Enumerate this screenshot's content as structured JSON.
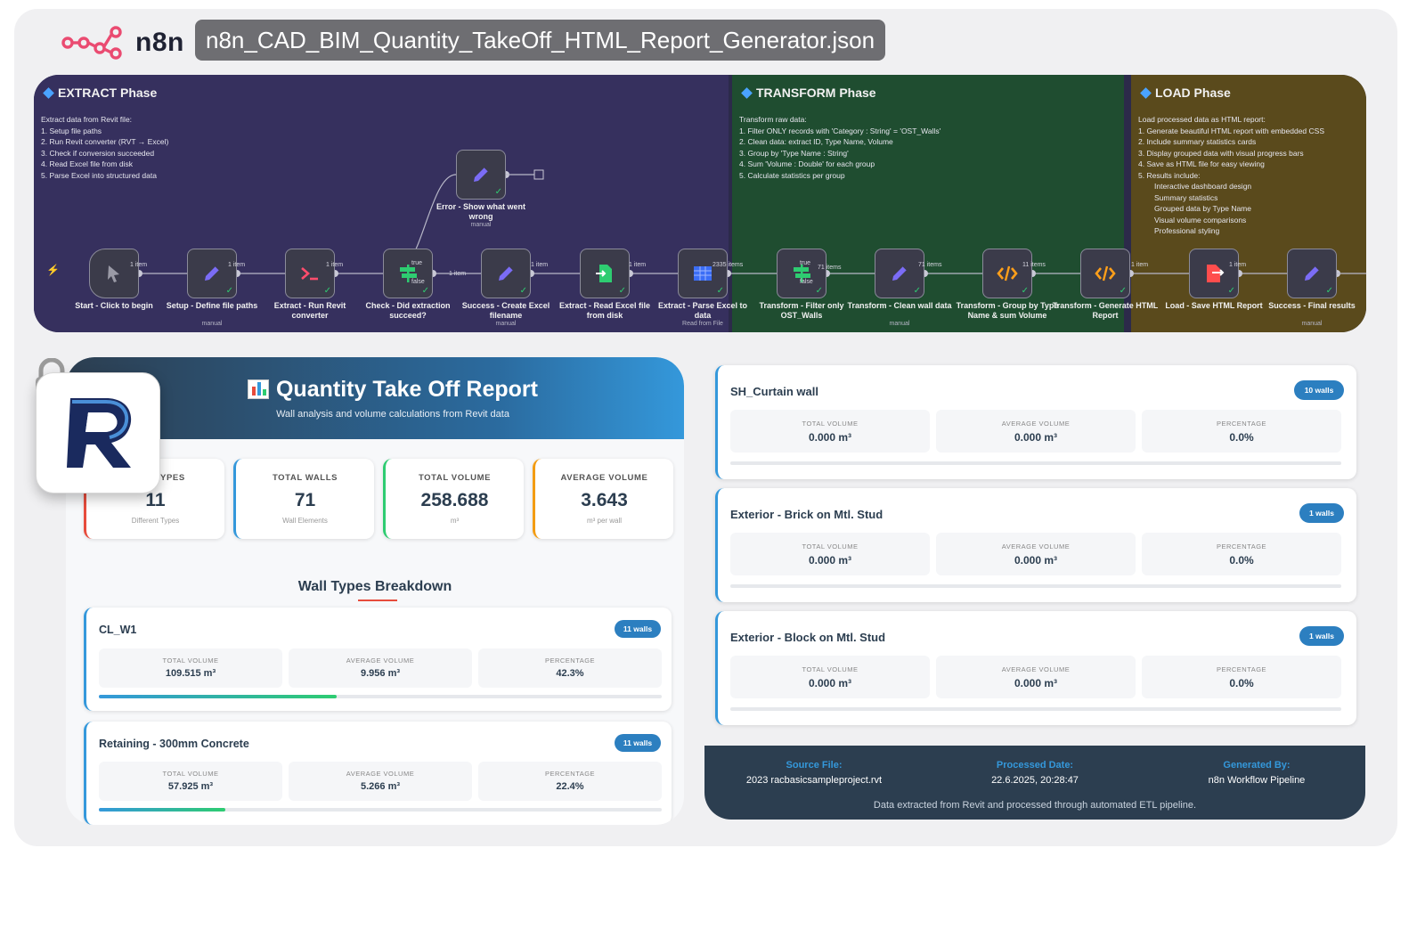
{
  "header": {
    "brand": "n8n",
    "file_title": "n8n_CAD_BIM_Quantity_TakeOff_HTML_Report_Generator.json"
  },
  "workflow": {
    "phases": [
      {
        "title": "EXTRACT Phase",
        "note_lines": [
          "Extract data from Revit file:",
          "1. Setup file paths",
          "2. Run Revit converter (RVT → Excel)",
          "3. Check if conversion succeeded",
          "4. Read Excel file from disk",
          "5. Parse Excel into structured data"
        ]
      },
      {
        "title": "TRANSFORM Phase",
        "note_lines": [
          "Transform raw data:",
          "1. Filter ONLY records with 'Category : String' = 'OST_Walls'",
          "2. Clean data: extract ID, Type Name, Volume",
          "3. Group by 'Type Name : String'",
          "4. Sum 'Volume : Double' for each group",
          "5. Calculate statistics per group"
        ]
      },
      {
        "title": "LOAD Phase",
        "note_lines": [
          "Load processed data as HTML report:",
          "1. Generate beautiful HTML report with embedded CSS",
          "2. Include summary statistics cards",
          "3. Display grouped data with visual progress bars",
          "4. Save as HTML file for easy viewing",
          "5. Results include:"
        ],
        "note_bullets": [
          "Interactive dashboard design",
          "Summary statistics",
          "Grouped data by Type Name",
          "Visual volume comparisons",
          "Professional styling"
        ]
      }
    ],
    "nodes": [
      {
        "label": "Start - Click to begin",
        "sub": "",
        "icon": "cursor-icon",
        "color": "#9a9aa6"
      },
      {
        "label": "Setup - Define file paths",
        "sub": "manual",
        "icon": "pencil-icon",
        "color": "#7b6cf6"
      },
      {
        "label": "Extract - Run Revit converter",
        "sub": "",
        "icon": "terminal-icon",
        "color": "#ff4d6d"
      },
      {
        "label": "Check - Did extraction succeed?",
        "sub": "",
        "icon": "if-signpost-icon",
        "color": "#2ecc71"
      },
      {
        "label": "Success - Create Excel filename",
        "sub": "manual",
        "icon": "pencil-icon",
        "color": "#7b6cf6"
      },
      {
        "label": "Extract - Read Excel file from disk",
        "sub": "",
        "icon": "file-read-icon",
        "color": "#2ecc71"
      },
      {
        "label": "Extract - Parse Excel to data",
        "sub": "Read from File",
        "icon": "spreadsheet-icon",
        "color": "#3b6df6"
      },
      {
        "label": "Transform - Filter only OST_Walls",
        "sub": "",
        "icon": "filter-signpost-icon",
        "color": "#2ecc71"
      },
      {
        "label": "Transform - Clean wall data",
        "sub": "manual",
        "icon": "pencil-icon",
        "color": "#7b6cf6"
      },
      {
        "label": "Transform - Group by Type Name & sum Volume",
        "sub": "",
        "icon": "code-icon",
        "color": "#ff9f1a"
      },
      {
        "label": "Transform - Generate HTML Report",
        "sub": "",
        "icon": "code-icon",
        "color": "#ff9f1a"
      },
      {
        "label": "Load - Save HTML Report",
        "sub": "",
        "icon": "file-save-icon",
        "color": "#ff4d4d"
      },
      {
        "label": "Success - Final results",
        "sub": "manual",
        "icon": "pencil-icon",
        "color": "#7b6cf6"
      }
    ],
    "error_node": {
      "label": "Error - Show what went wrong",
      "sub": "manual",
      "icon": "pencil-icon"
    },
    "edge_labels": [
      "1 item",
      "1 item",
      "1 item",
      "true",
      "false",
      "1 item",
      "1 item",
      "1 item",
      "2335 items",
      "true",
      "false",
      "71 items",
      "71 items",
      "11 items",
      "1 item",
      "1 item"
    ]
  },
  "report": {
    "title": "Quantity Take Off Report",
    "subtitle": "Wall analysis and volume calculations from Revit data",
    "stats": [
      {
        "label": "WALL TYPES",
        "value": "11",
        "sub": "Different Types",
        "accent": "#e74c3c"
      },
      {
        "label": "TOTAL WALLS",
        "value": "71",
        "sub": "Wall Elements",
        "accent": "#3498db"
      },
      {
        "label": "TOTAL VOLUME",
        "value": "258.688",
        "sub": "m³",
        "accent": "#2ecc71"
      },
      {
        "label": "AVERAGE VOLUME",
        "value": "3.643",
        "sub": "m³ per wall",
        "accent": "#f39c12"
      }
    ],
    "breakdown_title": "Wall Types Breakdown",
    "metric_labels": {
      "total": "TOTAL VOLUME",
      "average": "AVERAGE VOLUME",
      "percent": "PERCENTAGE"
    },
    "left_walls": [
      {
        "name": "CL_W1",
        "badge": "11 walls",
        "total": "109.515 m³",
        "average": "9.956 m³",
        "percent": "42.3%",
        "fraction": 0.423
      },
      {
        "name": "Retaining - 300mm Concrete",
        "badge": "11 walls",
        "total": "57.925 m³",
        "average": "5.266 m³",
        "percent": "22.4%",
        "fraction": 0.224
      }
    ],
    "right_walls": [
      {
        "name": "SH_Curtain wall",
        "badge": "10 walls",
        "total": "0.000 m³",
        "average": "0.000 m³",
        "percent": "0.0%",
        "fraction": 0.0
      },
      {
        "name": "Exterior - Brick on Mtl. Stud",
        "badge": "1 walls",
        "total": "0.000 m³",
        "average": "0.000 m³",
        "percent": "0.0%",
        "fraction": 0.0
      },
      {
        "name": "Exterior - Block on Mtl. Stud",
        "badge": "1 walls",
        "total": "0.000 m³",
        "average": "0.000 m³",
        "percent": "0.0%",
        "fraction": 0.0
      }
    ],
    "footer": {
      "source_label": "Source File:",
      "source_value": "2023 racbasicsampleproject.rvt",
      "date_label": "Processed Date:",
      "date_value": "22.6.2025, 20:28:47",
      "gen_label": "Generated By:",
      "gen_value": "n8n Workflow Pipeline",
      "note": "Data extracted from Revit and processed through automated ETL pipeline."
    }
  }
}
